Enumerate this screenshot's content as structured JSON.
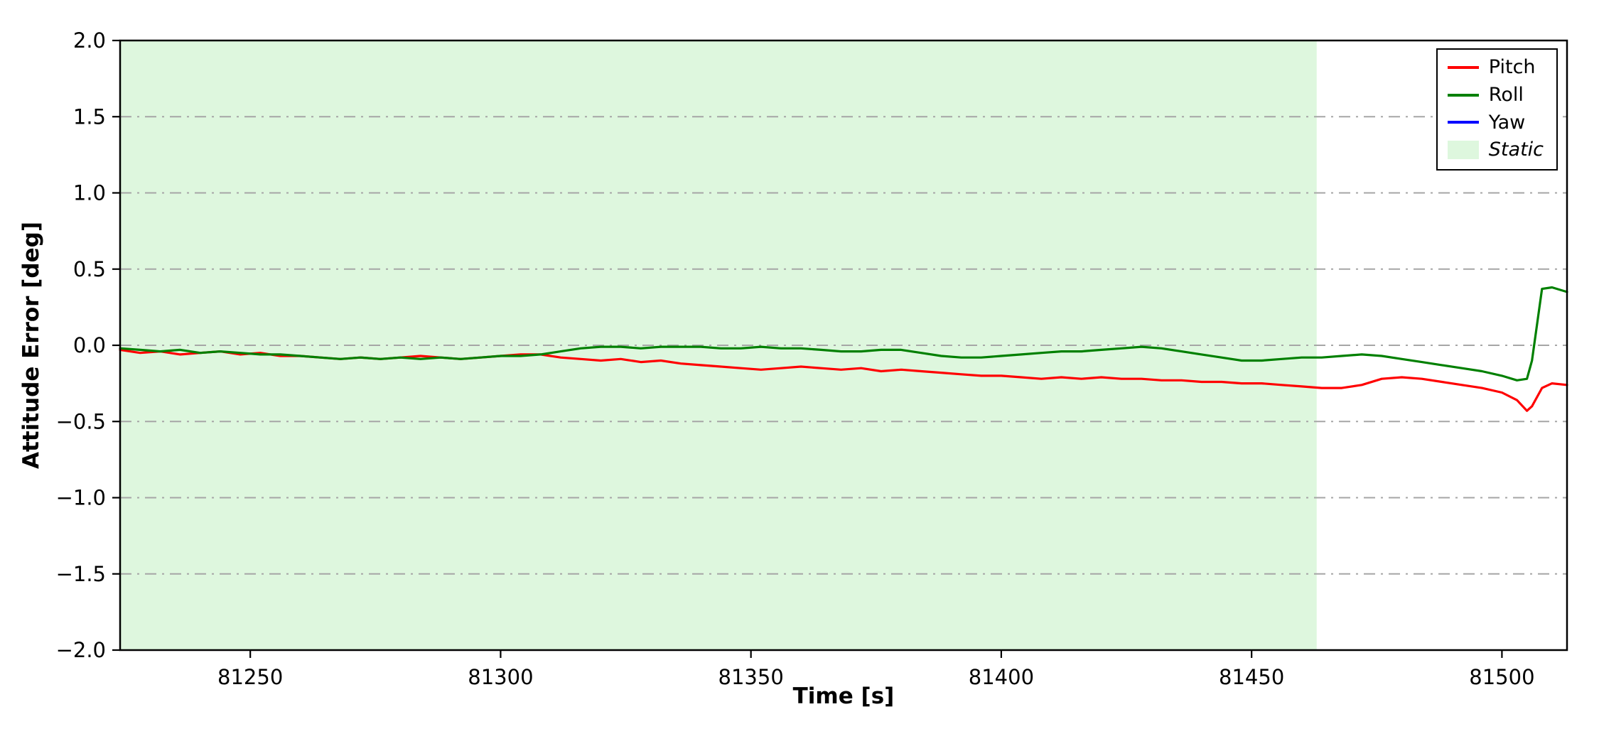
{
  "chart_data": {
    "type": "line",
    "title": "",
    "xlabel": "Time [s]",
    "ylabel": "Attitude Error [deg]",
    "xlim": [
      81224,
      81513
    ],
    "ylim": [
      -2.0,
      2.0
    ],
    "xticks": [
      81250,
      81300,
      81350,
      81400,
      81450,
      81500
    ],
    "yticks": [
      -2.0,
      -1.5,
      -1.0,
      -0.5,
      0.0,
      0.5,
      1.0,
      1.5,
      2.0
    ],
    "grid": {
      "visible": true,
      "style": "dash-dot",
      "color": "#a6a6a6",
      "levels": [
        -1.5,
        -1.0,
        -0.5,
        0.0,
        0.5,
        1.0,
        1.5
      ]
    },
    "static_region": {
      "label": "Static",
      "x_start": 81224,
      "x_end": 81463,
      "fill": "#def7de"
    },
    "legend": {
      "position": "top-right",
      "entries": [
        {
          "label": "Pitch",
          "color": "#ff0000",
          "type": "line",
          "italic": false
        },
        {
          "label": "Roll",
          "color": "#008000",
          "type": "line",
          "italic": false
        },
        {
          "label": "Yaw",
          "color": "#0000ff",
          "type": "line",
          "italic": false
        },
        {
          "label": "Static",
          "color": "#def7de",
          "type": "patch",
          "italic": true
        }
      ]
    },
    "series": [
      {
        "name": "Pitch",
        "color": "#ff0000",
        "points": [
          [
            81224,
            -0.03
          ],
          [
            81228,
            -0.05
          ],
          [
            81232,
            -0.04
          ],
          [
            81236,
            -0.06
          ],
          [
            81240,
            -0.05
          ],
          [
            81244,
            -0.04
          ],
          [
            81248,
            -0.06
          ],
          [
            81252,
            -0.05
          ],
          [
            81256,
            -0.07
          ],
          [
            81260,
            -0.07
          ],
          [
            81264,
            -0.08
          ],
          [
            81268,
            -0.09
          ],
          [
            81272,
            -0.08
          ],
          [
            81276,
            -0.09
          ],
          [
            81280,
            -0.08
          ],
          [
            81284,
            -0.07
          ],
          [
            81288,
            -0.08
          ],
          [
            81292,
            -0.09
          ],
          [
            81296,
            -0.08
          ],
          [
            81300,
            -0.07
          ],
          [
            81304,
            -0.06
          ],
          [
            81308,
            -0.06
          ],
          [
            81312,
            -0.08
          ],
          [
            81316,
            -0.09
          ],
          [
            81320,
            -0.1
          ],
          [
            81324,
            -0.09
          ],
          [
            81328,
            -0.11
          ],
          [
            81332,
            -0.1
          ],
          [
            81336,
            -0.12
          ],
          [
            81340,
            -0.13
          ],
          [
            81344,
            -0.14
          ],
          [
            81348,
            -0.15
          ],
          [
            81352,
            -0.16
          ],
          [
            81356,
            -0.15
          ],
          [
            81360,
            -0.14
          ],
          [
            81364,
            -0.15
          ],
          [
            81368,
            -0.16
          ],
          [
            81372,
            -0.15
          ],
          [
            81376,
            -0.17
          ],
          [
            81380,
            -0.16
          ],
          [
            81384,
            -0.17
          ],
          [
            81388,
            -0.18
          ],
          [
            81392,
            -0.19
          ],
          [
            81396,
            -0.2
          ],
          [
            81400,
            -0.2
          ],
          [
            81404,
            -0.21
          ],
          [
            81408,
            -0.22
          ],
          [
            81412,
            -0.21
          ],
          [
            81416,
            -0.22
          ],
          [
            81420,
            -0.21
          ],
          [
            81424,
            -0.22
          ],
          [
            81428,
            -0.22
          ],
          [
            81432,
            -0.23
          ],
          [
            81436,
            -0.23
          ],
          [
            81440,
            -0.24
          ],
          [
            81444,
            -0.24
          ],
          [
            81448,
            -0.25
          ],
          [
            81452,
            -0.25
          ],
          [
            81456,
            -0.26
          ],
          [
            81460,
            -0.27
          ],
          [
            81464,
            -0.28
          ],
          [
            81468,
            -0.28
          ],
          [
            81472,
            -0.26
          ],
          [
            81476,
            -0.22
          ],
          [
            81480,
            -0.21
          ],
          [
            81484,
            -0.22
          ],
          [
            81488,
            -0.24
          ],
          [
            81492,
            -0.26
          ],
          [
            81496,
            -0.28
          ],
          [
            81500,
            -0.31
          ],
          [
            81503,
            -0.36
          ],
          [
            81505,
            -0.43
          ],
          [
            81506,
            -0.4
          ],
          [
            81508,
            -0.28
          ],
          [
            81510,
            -0.25
          ],
          [
            81513,
            -0.26
          ]
        ]
      },
      {
        "name": "Roll",
        "color": "#008000",
        "points": [
          [
            81224,
            -0.02
          ],
          [
            81228,
            -0.03
          ],
          [
            81232,
            -0.04
          ],
          [
            81236,
            -0.03
          ],
          [
            81240,
            -0.05
          ],
          [
            81244,
            -0.04
          ],
          [
            81248,
            -0.05
          ],
          [
            81252,
            -0.06
          ],
          [
            81256,
            -0.06
          ],
          [
            81260,
            -0.07
          ],
          [
            81264,
            -0.08
          ],
          [
            81268,
            -0.09
          ],
          [
            81272,
            -0.08
          ],
          [
            81276,
            -0.09
          ],
          [
            81280,
            -0.08
          ],
          [
            81284,
            -0.09
          ],
          [
            81288,
            -0.08
          ],
          [
            81292,
            -0.09
          ],
          [
            81296,
            -0.08
          ],
          [
            81300,
            -0.07
          ],
          [
            81304,
            -0.07
          ],
          [
            81308,
            -0.06
          ],
          [
            81312,
            -0.04
          ],
          [
            81316,
            -0.02
          ],
          [
            81320,
            -0.01
          ],
          [
            81324,
            -0.01
          ],
          [
            81328,
            -0.02
          ],
          [
            81332,
            -0.01
          ],
          [
            81336,
            -0.01
          ],
          [
            81340,
            -0.01
          ],
          [
            81344,
            -0.02
          ],
          [
            81348,
            -0.02
          ],
          [
            81352,
            -0.01
          ],
          [
            81356,
            -0.02
          ],
          [
            81360,
            -0.02
          ],
          [
            81364,
            -0.03
          ],
          [
            81368,
            -0.04
          ],
          [
            81372,
            -0.04
          ],
          [
            81376,
            -0.03
          ],
          [
            81380,
            -0.03
          ],
          [
            81384,
            -0.05
          ],
          [
            81388,
            -0.07
          ],
          [
            81392,
            -0.08
          ],
          [
            81396,
            -0.08
          ],
          [
            81400,
            -0.07
          ],
          [
            81404,
            -0.06
          ],
          [
            81408,
            -0.05
          ],
          [
            81412,
            -0.04
          ],
          [
            81416,
            -0.04
          ],
          [
            81420,
            -0.03
          ],
          [
            81424,
            -0.02
          ],
          [
            81428,
            -0.01
          ],
          [
            81432,
            -0.02
          ],
          [
            81436,
            -0.04
          ],
          [
            81440,
            -0.06
          ],
          [
            81444,
            -0.08
          ],
          [
            81448,
            -0.1
          ],
          [
            81452,
            -0.1
          ],
          [
            81456,
            -0.09
          ],
          [
            81460,
            -0.08
          ],
          [
            81464,
            -0.08
          ],
          [
            81468,
            -0.07
          ],
          [
            81472,
            -0.06
          ],
          [
            81476,
            -0.07
          ],
          [
            81480,
            -0.09
          ],
          [
            81484,
            -0.11
          ],
          [
            81488,
            -0.13
          ],
          [
            81492,
            -0.15
          ],
          [
            81496,
            -0.17
          ],
          [
            81500,
            -0.2
          ],
          [
            81503,
            -0.23
          ],
          [
            81505,
            -0.22
          ],
          [
            81506,
            -0.1
          ],
          [
            81508,
            0.37
          ],
          [
            81510,
            0.38
          ],
          [
            81513,
            0.35
          ]
        ]
      },
      {
        "name": "Yaw",
        "color": "#0000ff",
        "points": []
      }
    ]
  }
}
